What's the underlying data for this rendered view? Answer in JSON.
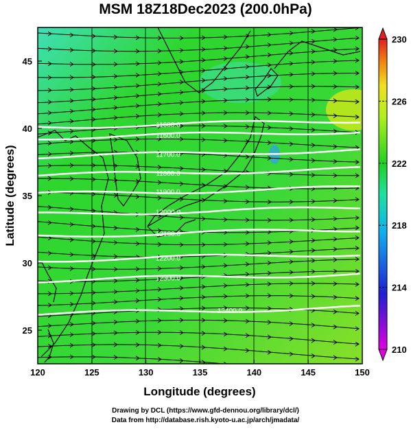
{
  "title": "MSM 18Z18Dec2023 (200.0hPa)",
  "map": {
    "x_label": "Longitude (degrees)",
    "y_label": "Latitude  (degrees)",
    "lon_range": [
      120,
      150
    ],
    "lat_range": [
      22.5,
      47.5
    ],
    "lon_ticks": [
      "120",
      "125",
      "130",
      "135",
      "140",
      "145",
      "150"
    ],
    "lat_ticks": [
      "45",
      "40",
      "35",
      "30",
      "25"
    ],
    "field_colors": {
      "background": "#2ed62e",
      "high": "#c8e81a",
      "cool": "#3fe0b8"
    },
    "contour_color": "#ffffff",
    "contour_labels": [
      {
        "text": "11600.0",
        "lat": 40.1
      },
      {
        "text": "11600.0",
        "lat": 39.3
      },
      {
        "text": "11700.0",
        "lat": 37.9
      },
      {
        "text": "11800.0",
        "lat": 36.5
      },
      {
        "text": "11900.0",
        "lat": 35.1
      },
      {
        "text": "12000.0",
        "lat": 33.6
      },
      {
        "text": "12100.0",
        "lat": 32.0
      },
      {
        "text": "12200.0",
        "lat": 30.2
      },
      {
        "text": "12300.0",
        "lat": 28.7
      },
      {
        "text": "12400.0",
        "lat": 26.2
      }
    ]
  },
  "colorbar": {
    "labels": [
      "230",
      "226",
      "222",
      "218",
      "214",
      "210"
    ],
    "min": 210,
    "max": 230
  },
  "credits": {
    "line1": "Drawing by DCL (https://www.gfd-dennou.org/library/dcl/)",
    "line2": "Data from http://database.rish.kyoto-u.ac.jp/arch/jmadata/"
  }
}
